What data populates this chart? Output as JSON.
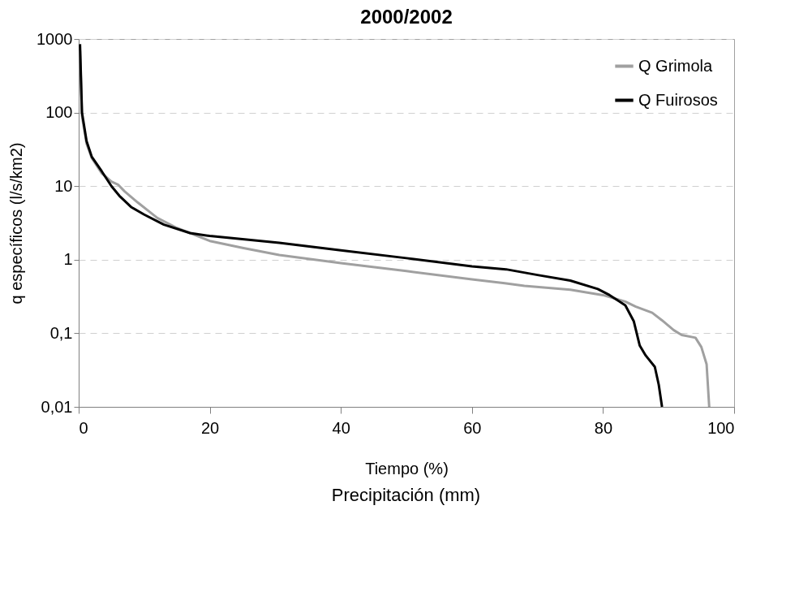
{
  "chart_data": {
    "type": "line",
    "title": "2000/2002",
    "xlabel": "Tiempo (%)",
    "ylabel": "q específicos (l/s/km2)",
    "annotations": [
      "Precipitación (mm)"
    ],
    "log": "y",
    "grid": "y",
    "legend": "top right",
    "marker": "none",
    "line_style": "solid",
    "xlim": [
      0,
      100
    ],
    "xticks": [
      0,
      20,
      40,
      60,
      80,
      100
    ],
    "ylim": [
      0.01,
      1000
    ],
    "yticks": [
      {
        "value": 0.01,
        "label": "0,01"
      },
      {
        "value": 0.1,
        "label": "0,1"
      },
      1,
      10,
      100,
      1000
    ],
    "series": [
      {
        "name": "Q Grimola",
        "color": "#a0a0a0",
        "x": [
          0.2,
          0.5,
          1.2,
          2,
          3.5,
          5,
          6,
          7,
          9,
          12,
          15,
          20,
          25,
          30.6,
          40,
          50,
          60,
          65,
          68,
          75,
          80,
          83.4,
          85,
          87.5,
          89,
          90.8,
          92,
          94.1,
          95,
          95.8,
          96.2
        ],
        "values": [
          700,
          90,
          38,
          24,
          15,
          11.5,
          10.5,
          8.5,
          6,
          3.7,
          2.7,
          1.8,
          1.45,
          1.16,
          0.9,
          0.7,
          0.54,
          0.48,
          0.44,
          0.39,
          0.33,
          0.27,
          0.23,
          0.19,
          0.15,
          0.11,
          0.095,
          0.087,
          0.065,
          0.038,
          0.01
        ]
      },
      {
        "name": "Q Fuirosos",
        "color": "#000000",
        "x": [
          0.2,
          0.5,
          1.2,
          2,
          3.5,
          5,
          6.2,
          8,
          10,
          13,
          17,
          20,
          25,
          30.6,
          40,
          50,
          60,
          65.2,
          70,
          75,
          79.2,
          81,
          83.4,
          84.7,
          85.6,
          86.5,
          87.9,
          88.5,
          89
        ],
        "values": [
          850,
          100,
          41,
          25,
          16,
          10,
          7.4,
          5.2,
          4.1,
          3,
          2.3,
          2.1,
          1.9,
          1.7,
          1.34,
          1.05,
          0.81,
          0.74,
          0.62,
          0.52,
          0.4,
          0.33,
          0.24,
          0.145,
          0.068,
          0.05,
          0.035,
          0.02,
          0.01
        ]
      }
    ]
  }
}
